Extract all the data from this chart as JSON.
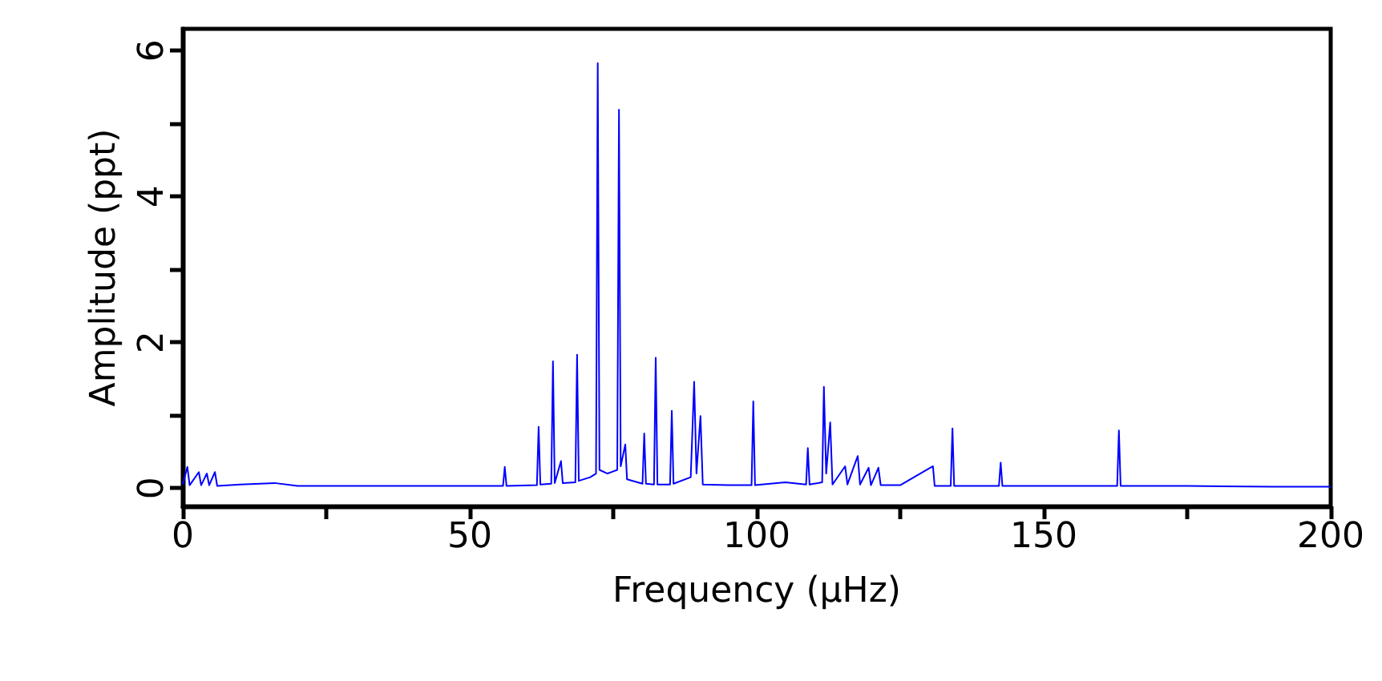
{
  "chart_data": {
    "type": "line",
    "xlabel": "Frequency (μHz)",
    "ylabel": "Amplitude (ppt)",
    "xlim": [
      0,
      200
    ],
    "ylim": [
      -0.25,
      6.3
    ],
    "xticks": [
      0,
      {
        "value": 25,
        "label": null
      },
      50,
      {
        "value": 75,
        "label": null
      },
      100,
      {
        "value": 125,
        "label": null
      },
      150,
      {
        "value": 175,
        "label": null
      },
      200
    ],
    "yticks": [
      0,
      {
        "value": 1,
        "label": null
      },
      2,
      {
        "value": 3,
        "label": null
      },
      4,
      {
        "value": 5,
        "label": null
      },
      6
    ],
    "grid": false,
    "marker": "none",
    "line_style": "solid",
    "series": [
      {
        "color": "#0000ff",
        "x": [
          0,
          0.8,
          1.2,
          2.8,
          3.2,
          4.2,
          4.6,
          5.6,
          6,
          10,
          16,
          20,
          30,
          40,
          50,
          55.8,
          56.1,
          56.4,
          61.7,
          62.0,
          62.3,
          64.2,
          64.5,
          64.8,
          65.9,
          66.2,
          68.4,
          68.7,
          69,
          71,
          72,
          72.3,
          72.6,
          74,
          75.7,
          76.0,
          76.3,
          77.1,
          77.4,
          80.1,
          80.4,
          80.7,
          82.1,
          82.4,
          82.7,
          84.9,
          85.2,
          85.5,
          88.5,
          89.1,
          89.5,
          90.2,
          90.6,
          95,
          99.1,
          99.4,
          99.7,
          105,
          108.6,
          108.9,
          109.2,
          111.4,
          111.7,
          112.1,
          112.8,
          113.2,
          115.4,
          115.8,
          117.6,
          118,
          119.5,
          119.9,
          121.2,
          121.6,
          125,
          130.7,
          131,
          133.8,
          134.1,
          134.4,
          142.2,
          142.5,
          142.8,
          150,
          162.8,
          163.1,
          163.4,
          175,
          190,
          200
        ],
        "values": [
          0.05,
          0.29,
          0.04,
          0.22,
          0.04,
          0.2,
          0.04,
          0.22,
          0.03,
          0.05,
          0.07,
          0.03,
          0.03,
          0.03,
          0.03,
          0.03,
          0.29,
          0.03,
          0.04,
          0.84,
          0.05,
          0.06,
          1.74,
          0.07,
          0.37,
          0.07,
          0.08,
          1.83,
          0.1,
          0.15,
          0.2,
          5.83,
          0.25,
          0.2,
          0.25,
          5.19,
          0.3,
          0.6,
          0.12,
          0.06,
          0.75,
          0.06,
          0.05,
          1.79,
          0.05,
          0.05,
          1.06,
          0.06,
          0.15,
          1.46,
          0.2,
          0.99,
          0.05,
          0.04,
          0.04,
          1.19,
          0.04,
          0.08,
          0.05,
          0.55,
          0.05,
          0.08,
          1.39,
          0.2,
          0.9,
          0.05,
          0.3,
          0.05,
          0.44,
          0.05,
          0.28,
          0.04,
          0.28,
          0.04,
          0.04,
          0.3,
          0.03,
          0.03,
          0.82,
          0.03,
          0.03,
          0.35,
          0.03,
          0.03,
          0.03,
          0.79,
          0.03,
          0.03,
          0.02,
          0.02
        ]
      }
    ]
  }
}
